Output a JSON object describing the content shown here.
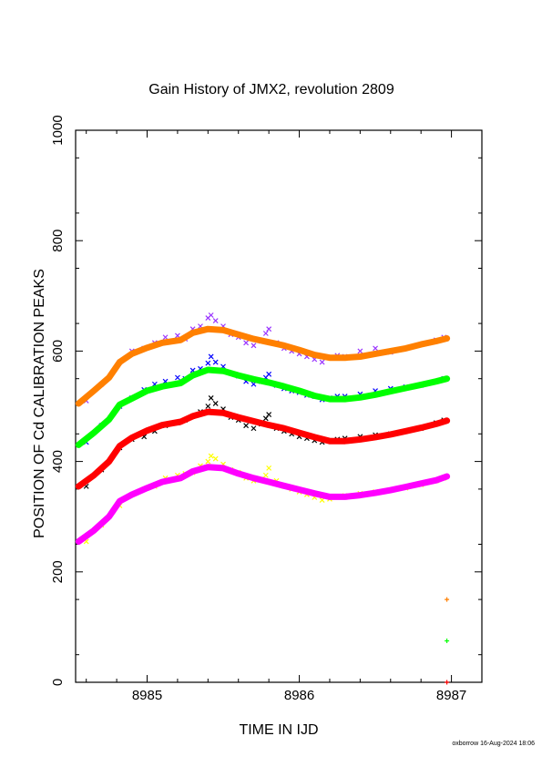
{
  "chart_data": {
    "type": "scatter",
    "title": "Gain History of JMX2, revolution 2809",
    "xlabel": "TIME IN IJD",
    "ylabel": "POSITION OF Cd CALIBRATION PEAKS",
    "xlim": [
      8984.53,
      8987.2
    ],
    "ylim": [
      0,
      1000
    ],
    "xticks": [
      8985,
      8986,
      8987
    ],
    "yticks": [
      0,
      200,
      400,
      600,
      800,
      1000
    ],
    "grid": false,
    "footer": "oxborrow 16-Aug-2024 18:06",
    "series": [
      {
        "kind": "points",
        "marker": "x",
        "color": "#9933ff",
        "x": [
          8984.6,
          8984.7,
          8984.82,
          8984.9,
          8984.98,
          8985.05,
          8985.12,
          8985.2,
          8985.25,
          8985.3,
          8985.35,
          8985.4,
          8985.42,
          8985.45,
          8985.5,
          8985.55,
          8985.6,
          8985.65,
          8985.7,
          8985.75,
          8985.78,
          8985.8,
          8985.85,
          8985.9,
          8985.95,
          8986.0,
          8986.05,
          8986.1,
          8986.15,
          8986.2,
          8986.25,
          8986.3,
          8986.4,
          8986.5,
          8986.6,
          8986.7,
          8986.8,
          8986.9,
          8986.95
        ],
        "y": [
          510,
          540,
          580,
          600,
          605,
          615,
          625,
          628,
          622,
          640,
          645,
          660,
          665,
          655,
          645,
          630,
          625,
          615,
          610,
          618,
          632,
          640,
          615,
          605,
          600,
          595,
          590,
          585,
          580,
          588,
          592,
          590,
          600,
          605,
          598,
          605,
          612,
          620,
          625
        ]
      },
      {
        "kind": "points",
        "marker": "x",
        "color": "#0000ff",
        "x": [
          8984.6,
          8984.7,
          8984.82,
          8984.9,
          8984.98,
          8985.05,
          8985.12,
          8985.2,
          8985.25,
          8985.3,
          8985.35,
          8985.4,
          8985.42,
          8985.45,
          8985.5,
          8985.55,
          8985.6,
          8985.65,
          8985.7,
          8985.75,
          8985.78,
          8985.8,
          8985.85,
          8985.9,
          8985.95,
          8986.0,
          8986.05,
          8986.1,
          8986.15,
          8986.2,
          8986.25,
          8986.3,
          8986.4,
          8986.5,
          8986.6,
          8986.7,
          8986.8,
          8986.9,
          8986.95
        ],
        "y": [
          435,
          465,
          500,
          515,
          530,
          540,
          545,
          552,
          550,
          565,
          568,
          578,
          590,
          580,
          572,
          560,
          555,
          545,
          540,
          545,
          552,
          558,
          538,
          532,
          528,
          525,
          520,
          518,
          512,
          515,
          518,
          518,
          522,
          528,
          532,
          535,
          538,
          545,
          550
        ]
      },
      {
        "kind": "points",
        "marker": "x",
        "color": "#000000",
        "x": [
          8984.6,
          8984.7,
          8984.82,
          8984.9,
          8984.98,
          8985.05,
          8985.12,
          8985.2,
          8985.25,
          8985.3,
          8985.35,
          8985.4,
          8985.42,
          8985.45,
          8985.5,
          8985.55,
          8985.6,
          8985.65,
          8985.7,
          8985.75,
          8985.78,
          8985.8,
          8985.85,
          8985.9,
          8985.95,
          8986.0,
          8986.05,
          8986.1,
          8986.15,
          8986.2,
          8986.25,
          8986.3,
          8986.4,
          8986.5,
          8986.6,
          8986.7,
          8986.8,
          8986.9,
          8986.95
        ],
        "y": [
          355,
          385,
          425,
          440,
          445,
          455,
          465,
          470,
          475,
          482,
          490,
          500,
          515,
          505,
          495,
          480,
          475,
          465,
          460,
          468,
          478,
          485,
          460,
          455,
          450,
          445,
          442,
          438,
          435,
          438,
          440,
          442,
          445,
          448,
          450,
          455,
          460,
          470,
          475
        ]
      },
      {
        "kind": "points",
        "marker": "x",
        "color": "#ffff00",
        "x": [
          8984.6,
          8984.7,
          8984.82,
          8984.9,
          8984.98,
          8985.05,
          8985.12,
          8985.2,
          8985.25,
          8985.3,
          8985.35,
          8985.4,
          8985.42,
          8985.45,
          8985.5,
          8985.55,
          8985.6,
          8985.65,
          8985.7,
          8985.75,
          8985.78,
          8985.8,
          8985.85,
          8985.9,
          8985.95,
          8986.0,
          8986.05,
          8986.1,
          8986.15,
          8986.2,
          8986.25,
          8986.3,
          8986.4,
          8986.5,
          8986.6,
          8986.7,
          8986.8,
          8986.9,
          8986.95
        ],
        "y": [
          255,
          285,
          320,
          340,
          350,
          355,
          370,
          375,
          378,
          380,
          392,
          400,
          410,
          405,
          395,
          385,
          380,
          370,
          365,
          368,
          375,
          388,
          365,
          355,
          350,
          345,
          340,
          335,
          330,
          332,
          336,
          338,
          342,
          345,
          348,
          352,
          358,
          365,
          370
        ]
      },
      {
        "kind": "line",
        "color": "#ff8000",
        "x": [
          8984.55,
          8984.65,
          8984.75,
          8984.82,
          8984.9,
          8985.0,
          8985.1,
          8985.22,
          8985.3,
          8985.4,
          8985.5,
          8985.6,
          8985.7,
          8985.8,
          8985.9,
          8986.0,
          8986.1,
          8986.2,
          8986.3,
          8986.4,
          8986.5,
          8986.6,
          8986.7,
          8986.8,
          8986.9,
          8986.97
        ],
        "y": [
          505,
          528,
          552,
          580,
          595,
          606,
          615,
          620,
          633,
          640,
          638,
          630,
          622,
          616,
          610,
          602,
          593,
          588,
          588,
          590,
          595,
          600,
          605,
          612,
          618,
          623
        ]
      },
      {
        "kind": "line",
        "color": "#00ff00",
        "x": [
          8984.55,
          8984.65,
          8984.75,
          8984.82,
          8984.9,
          8985.0,
          8985.1,
          8985.22,
          8985.3,
          8985.4,
          8985.5,
          8985.6,
          8985.7,
          8985.8,
          8985.9,
          8986.0,
          8986.1,
          8986.2,
          8986.3,
          8986.4,
          8986.5,
          8986.6,
          8986.7,
          8986.8,
          8986.9,
          8986.97
        ],
        "y": [
          430,
          452,
          476,
          503,
          514,
          528,
          536,
          542,
          556,
          566,
          564,
          556,
          549,
          543,
          536,
          528,
          519,
          513,
          513,
          516,
          521,
          527,
          533,
          539,
          545,
          550
        ]
      },
      {
        "kind": "line",
        "color": "#ff0000",
        "x": [
          8984.55,
          8984.65,
          8984.75,
          8984.82,
          8984.9,
          8985.0,
          8985.1,
          8985.22,
          8985.3,
          8985.4,
          8985.5,
          8985.6,
          8985.7,
          8985.8,
          8985.9,
          8986.0,
          8986.1,
          8986.2,
          8986.3,
          8986.4,
          8986.5,
          8986.6,
          8986.7,
          8986.8,
          8986.9,
          8986.97
        ],
        "y": [
          355,
          375,
          400,
          428,
          443,
          456,
          466,
          472,
          482,
          490,
          488,
          480,
          473,
          466,
          460,
          452,
          444,
          437,
          437,
          440,
          444,
          449,
          455,
          461,
          468,
          474
        ]
      },
      {
        "kind": "line",
        "color": "#ff00ff",
        "x": [
          8984.55,
          8984.65,
          8984.75,
          8984.82,
          8984.9,
          8985.0,
          8985.1,
          8985.22,
          8985.3,
          8985.4,
          8985.5,
          8985.6,
          8985.7,
          8985.8,
          8985.9,
          8986.0,
          8986.1,
          8986.2,
          8986.3,
          8986.4,
          8986.5,
          8986.6,
          8986.7,
          8986.8,
          8986.9,
          8986.97
        ],
        "y": [
          255,
          275,
          300,
          328,
          340,
          352,
          363,
          370,
          382,
          390,
          388,
          378,
          370,
          363,
          356,
          349,
          342,
          336,
          336,
          339,
          343,
          348,
          354,
          360,
          366,
          373
        ]
      },
      {
        "kind": "points",
        "marker": "+",
        "color": "#ff8000",
        "x": [
          8986.97
        ],
        "y": [
          150
        ]
      },
      {
        "kind": "points",
        "marker": "+",
        "color": "#00ff00",
        "x": [
          8986.97
        ],
        "y": [
          75
        ]
      },
      {
        "kind": "points",
        "marker": "+",
        "color": "#ff0000",
        "x": [
          8986.97
        ],
        "y": [
          0
        ]
      }
    ]
  }
}
